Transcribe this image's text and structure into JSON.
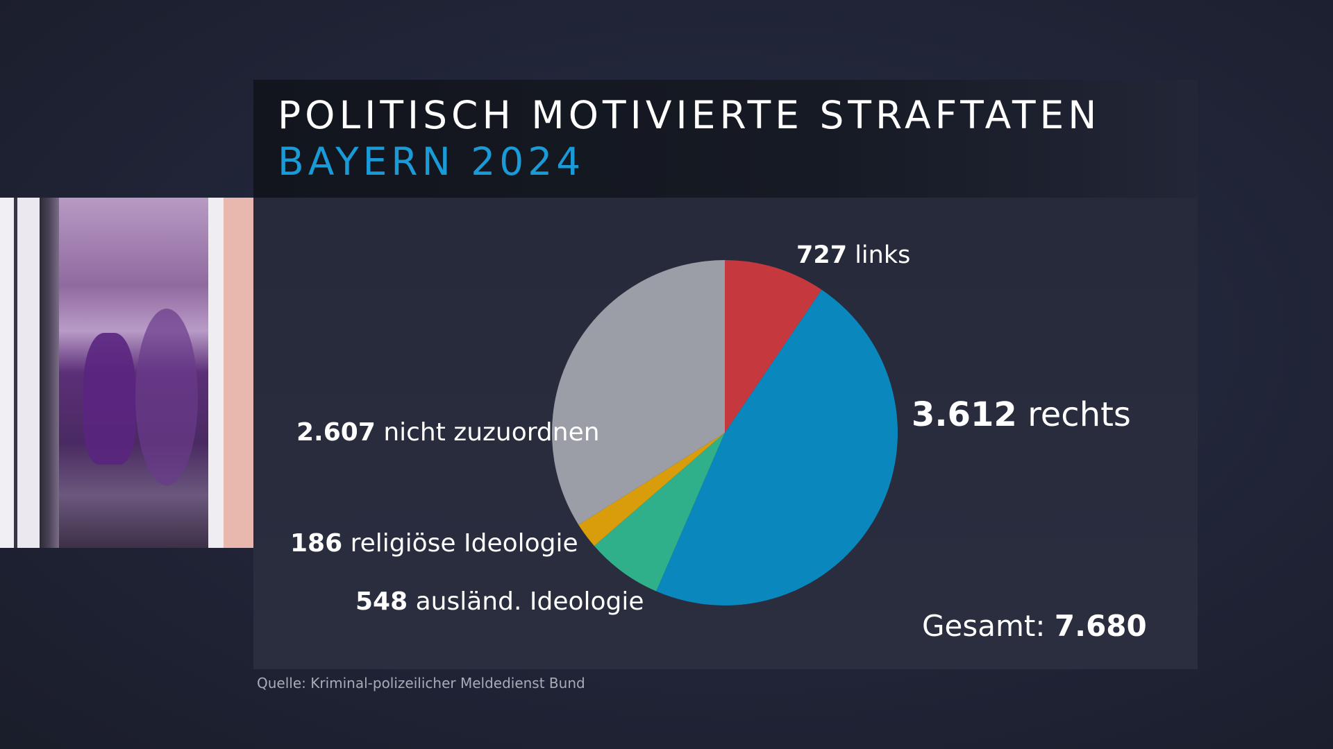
{
  "header": {
    "title": "POLITISCH MOTIVIERTE STRAFTATEN",
    "subtitle": "BAYERN 2024",
    "subtitle_color": "#1a9ad6"
  },
  "labels": {
    "links": {
      "value": "727",
      "text": " links"
    },
    "rechts": {
      "value": "3.612",
      "text": " rechts"
    },
    "nicht_zuzuordnen": {
      "value": "2.607",
      "text": " nicht zuzuordnen"
    },
    "religioese": {
      "value": "186",
      "text": " religiöse Ideologie"
    },
    "auslaendisch": {
      "value": "548",
      "text": " ausländ. Ideologie"
    },
    "total": {
      "prefix": "Gesamt: ",
      "value": "7.680"
    }
  },
  "source": "Quelle: Kriminal-polizeilicher Meldedienst Bund",
  "chart_data": {
    "type": "pie",
    "title": "Politisch motivierte Straftaten – Bayern 2024",
    "start_angle": "12 o'clock, clockwise",
    "categories": [
      "links",
      "rechts",
      "ausländ. Ideologie",
      "religiöse Ideologie",
      "nicht zuzuordnen"
    ],
    "values": [
      727,
      3612,
      548,
      186,
      2607
    ],
    "colors": [
      "#c4383e",
      "#0a88bd",
      "#2fb08a",
      "#d99c0a",
      "#9b9ea6"
    ],
    "total": 7680,
    "legend": "none (direct labels)",
    "annotations": [
      "Gesamt: 7.680"
    ]
  }
}
